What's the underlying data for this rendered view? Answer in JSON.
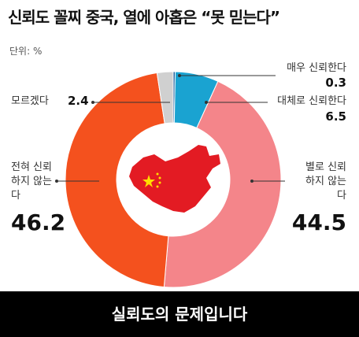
{
  "chart_data": {
    "type": "donut",
    "title": "신뢰도 꼴찌 중국, 열에 아홉은 “못 믿는다”",
    "unit": "단위: %",
    "categories": [
      "매우 신뢰한다",
      "대체로 신뢰한다",
      "별로 신뢰하지 않는다",
      "전혀 신뢰하지 않는다",
      "모르겠다"
    ],
    "values": [
      0.3,
      6.5,
      44.5,
      46.2,
      2.4
    ],
    "colors": [
      "#1b5e9c",
      "#1aa3d1",
      "#f4858a",
      "#f4511e",
      "#d0d0d0"
    ],
    "caption": "실뢰도의 문제입니다"
  }
}
